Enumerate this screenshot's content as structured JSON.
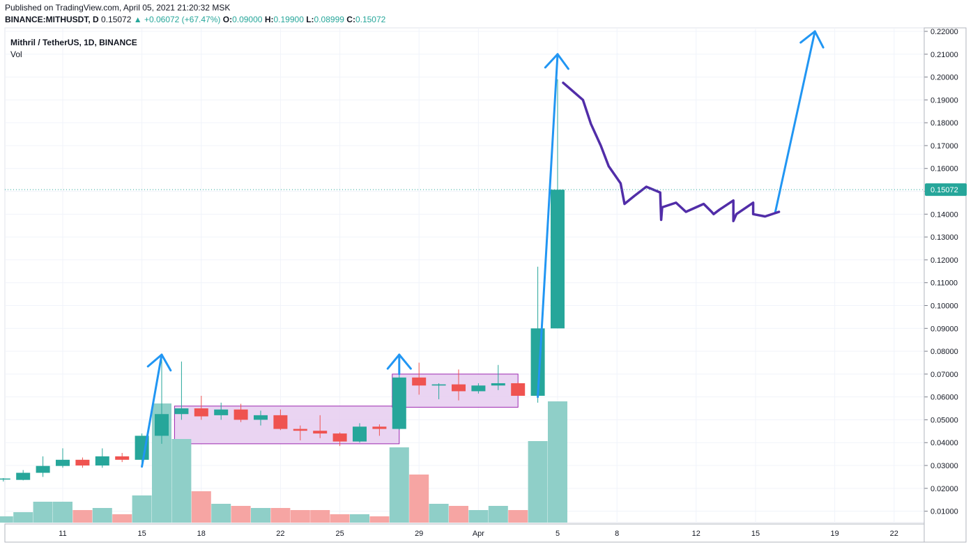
{
  "header": {
    "published": "Published on TradingView.com, April 05, 2021 21:20:32 MSK",
    "symbol": "BINANCE:MITHUSDT, D",
    "last": "0.15072",
    "change": "▲ +0.06072 (+67.47%)",
    "o_label": "O:",
    "o_value": "0.09000",
    "h_label": "H:",
    "h_value": "0.19900",
    "l_label": "L:",
    "l_value": "0.08999",
    "c_label": "C:",
    "c_value": "0.15072"
  },
  "chart_data": {
    "type": "candlestick",
    "title": "Mithril / TetherUS, 1D, BINANCE",
    "subtitle": "Vol",
    "y_ticks": [
      "0.01000",
      "0.02000",
      "0.03000",
      "0.04000",
      "0.05000",
      "0.06000",
      "0.07000",
      "0.08000",
      "0.09000",
      "0.10000",
      "0.11000",
      "0.12000",
      "0.13000",
      "0.14000",
      "0.15000",
      "0.16000",
      "0.17000",
      "0.18000",
      "0.19000",
      "0.20000",
      "0.21000",
      "0.22000"
    ],
    "ylim": [
      0.0,
      0.222
    ],
    "x_ticks": [
      {
        "day": 11,
        "label": "11"
      },
      {
        "day": 15,
        "label": "15"
      },
      {
        "day": 18,
        "label": "18"
      },
      {
        "day": 22,
        "label": "22"
      },
      {
        "day": 25,
        "label": "25"
      },
      {
        "day": 29,
        "label": "29"
      },
      {
        "day": 32,
        "label": "Apr"
      },
      {
        "day": 36,
        "label": "5"
      },
      {
        "day": 39,
        "label": "8"
      },
      {
        "day": 43,
        "label": "12"
      },
      {
        "day": 46,
        "label": "15"
      },
      {
        "day": 50,
        "label": "19"
      },
      {
        "day": 53,
        "label": "22"
      }
    ],
    "last_price": 0.15072,
    "last_price_label": "0.15072",
    "candles": [
      {
        "day": 8,
        "o": 0.024,
        "h": 0.0245,
        "l": 0.023,
        "c": 0.0243,
        "v": 0.3
      },
      {
        "day": 9,
        "o": 0.0237,
        "h": 0.028,
        "l": 0.0235,
        "c": 0.0268,
        "v": 0.5
      },
      {
        "day": 10,
        "o": 0.0268,
        "h": 0.034,
        "l": 0.025,
        "c": 0.0298,
        "v": 1.0
      },
      {
        "day": 11,
        "o": 0.0298,
        "h": 0.0375,
        "l": 0.029,
        "c": 0.0325,
        "v": 1.0
      },
      {
        "day": 12,
        "o": 0.0325,
        "h": 0.0335,
        "l": 0.029,
        "c": 0.03,
        "v": 0.6
      },
      {
        "day": 13,
        "o": 0.03,
        "h": 0.0375,
        "l": 0.029,
        "c": 0.034,
        "v": 0.7
      },
      {
        "day": 14,
        "o": 0.034,
        "h": 0.0355,
        "l": 0.0315,
        "c": 0.0325,
        "v": 0.4
      },
      {
        "day": 15,
        "o": 0.0325,
        "h": 0.044,
        "l": 0.03,
        "c": 0.043,
        "v": 1.3
      },
      {
        "day": 16,
        "o": 0.043,
        "h": 0.078,
        "l": 0.0395,
        "c": 0.0525,
        "v": 5.7
      },
      {
        "day": 17,
        "o": 0.0525,
        "h": 0.0755,
        "l": 0.05,
        "c": 0.055,
        "v": 4.0
      },
      {
        "day": 18,
        "o": 0.055,
        "h": 0.0605,
        "l": 0.05,
        "c": 0.0515,
        "v": 1.5
      },
      {
        "day": 19,
        "o": 0.052,
        "h": 0.0575,
        "l": 0.05,
        "c": 0.0545,
        "v": 0.9
      },
      {
        "day": 20,
        "o": 0.0545,
        "h": 0.057,
        "l": 0.049,
        "c": 0.05,
        "v": 0.8
      },
      {
        "day": 21,
        "o": 0.05,
        "h": 0.054,
        "l": 0.0475,
        "c": 0.052,
        "v": 0.7
      },
      {
        "day": 22,
        "o": 0.052,
        "h": 0.0545,
        "l": 0.0455,
        "c": 0.046,
        "v": 0.7
      },
      {
        "day": 23,
        "o": 0.046,
        "h": 0.0475,
        "l": 0.041,
        "c": 0.0452,
        "v": 0.6
      },
      {
        "day": 24,
        "o": 0.0452,
        "h": 0.052,
        "l": 0.042,
        "c": 0.044,
        "v": 0.6
      },
      {
        "day": 25,
        "o": 0.044,
        "h": 0.0445,
        "l": 0.0385,
        "c": 0.0405,
        "v": 0.4
      },
      {
        "day": 26,
        "o": 0.0405,
        "h": 0.0485,
        "l": 0.04,
        "c": 0.047,
        "v": 0.4
      },
      {
        "day": 27,
        "o": 0.047,
        "h": 0.048,
        "l": 0.043,
        "c": 0.046,
        "v": 0.3
      },
      {
        "day": 28,
        "o": 0.046,
        "h": 0.0695,
        "l": 0.0455,
        "c": 0.0685,
        "v": 3.6
      },
      {
        "day": 29,
        "o": 0.0685,
        "h": 0.075,
        "l": 0.061,
        "c": 0.065,
        "v": 2.3
      },
      {
        "day": 30,
        "o": 0.065,
        "h": 0.066,
        "l": 0.059,
        "c": 0.0655,
        "v": 0.9
      },
      {
        "day": 31,
        "o": 0.0655,
        "h": 0.072,
        "l": 0.0585,
        "c": 0.0625,
        "v": 0.8
      },
      {
        "day": 32,
        "o": 0.0625,
        "h": 0.066,
        "l": 0.0615,
        "c": 0.065,
        "v": 0.6
      },
      {
        "day": 33,
        "o": 0.065,
        "h": 0.074,
        "l": 0.063,
        "c": 0.066,
        "v": 0.8
      },
      {
        "day": 34,
        "o": 0.066,
        "h": 0.0665,
        "l": 0.0605,
        "c": 0.0605,
        "v": 0.6
      },
      {
        "day": 35,
        "o": 0.0605,
        "h": 0.117,
        "l": 0.0575,
        "c": 0.09,
        "v": 3.9
      },
      {
        "day": 36,
        "o": 0.09,
        "h": 0.199,
        "l": 0.09,
        "c": 0.1507,
        "v": 5.8
      }
    ],
    "volume_unit_note": "",
    "zones": [
      {
        "day_from": 17,
        "day_to": 28,
        "low": 0.0395,
        "high": 0.056
      },
      {
        "day_from": 28,
        "day_to": 34,
        "low": 0.0555,
        "high": 0.07
      }
    ],
    "drawn_arrows": [
      {
        "from": [
          15,
          0.0295
        ],
        "to": [
          16,
          0.0785
        ]
      },
      {
        "from": [
          28,
          0.07
        ],
        "to": [
          28,
          0.0785
        ]
      },
      {
        "from": [
          35,
          0.06
        ],
        "to": [
          36,
          0.21
        ]
      },
      {
        "from": [
          47,
          0.141
        ],
        "to": [
          49,
          0.22
        ]
      }
    ],
    "forecast_path": [
      [
        36,
        0.1975
      ],
      [
        37,
        0.19
      ],
      [
        37.4,
        0.1795
      ],
      [
        37.9,
        0.17
      ],
      [
        38.3,
        0.161
      ],
      [
        38.9,
        0.1535
      ],
      [
        39.1,
        0.1445
      ],
      [
        39.6,
        0.148
      ],
      [
        40.2,
        0.152
      ],
      [
        40.9,
        0.1495
      ],
      [
        40.95,
        0.1375
      ],
      [
        41.0,
        0.143
      ],
      [
        41.7,
        0.145
      ],
      [
        42.2,
        0.141
      ],
      [
        43.1,
        0.1445
      ],
      [
        43.5,
        0.141
      ],
      [
        43.6,
        0.14
      ],
      [
        43.9,
        0.142
      ],
      [
        44.6,
        0.146
      ],
      [
        44.6,
        0.137
      ],
      [
        44.75,
        0.14
      ],
      [
        45.6,
        0.145
      ],
      [
        45.6,
        0.14
      ],
      [
        46.2,
        0.139
      ],
      [
        46.9,
        0.141
      ]
    ]
  },
  "colors": {
    "up": "#26a69a",
    "down": "#ef5350",
    "vol_up": "#8fcfc8",
    "vol_down": "#f6a5a3",
    "zone_fill": "#e6cdf0",
    "zone_stroke": "#9c27b0",
    "arrow": "#2196f3",
    "forecast": "#512da8",
    "grid": "#f0f3fa",
    "axis_text": "#131722",
    "last_price_bg": "#26a69a"
  }
}
